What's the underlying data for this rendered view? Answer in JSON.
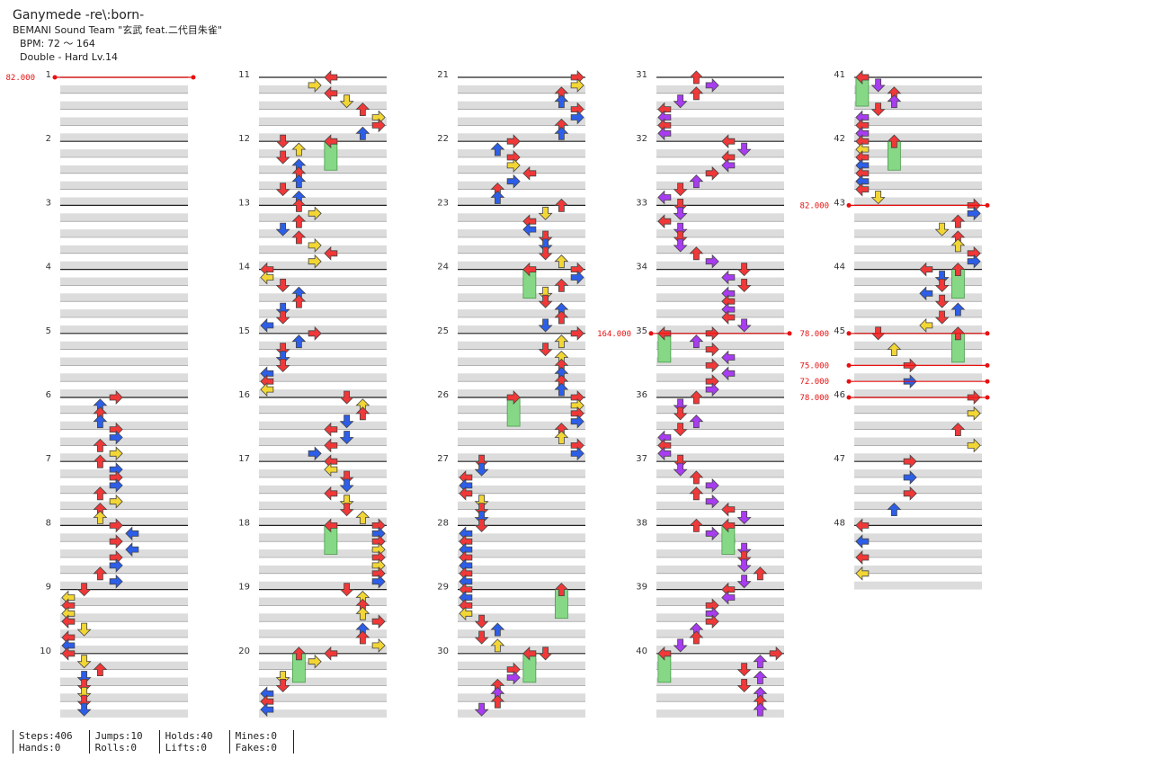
{
  "song": {
    "title": "Ganymede -re\\:born-",
    "artist": "BEMANI Sound Team \"玄武 feat.二代目朱雀\"",
    "bpm": "BPM: 72 ～ 164",
    "difficulty": "Double - Hard  Lv.14"
  },
  "measure_numbers": [
    "1",
    "2",
    "3",
    "4",
    "5",
    "6",
    "7",
    "8",
    "9",
    "10",
    "11",
    "12",
    "13",
    "14",
    "15",
    "16",
    "17",
    "18",
    "19",
    "20",
    "21",
    "22",
    "23",
    "24",
    "25",
    "26",
    "27",
    "28",
    "29",
    "30",
    "31",
    "32",
    "33",
    "34",
    "35",
    "36",
    "37",
    "38",
    "39",
    "40",
    "41",
    "42",
    "43",
    "44",
    "45",
    "46",
    "47",
    "48"
  ],
  "bpm_changes": [
    {
      "measure": 1,
      "beat": 0,
      "label": "82.000"
    },
    {
      "measure": 35,
      "beat": 0,
      "label": "164.000"
    },
    {
      "measure": 43,
      "beat": 0,
      "label": "82.000"
    },
    {
      "measure": 45,
      "beat": 0,
      "label": "78.000"
    },
    {
      "measure": 45,
      "beat": 2,
      "label": "75.000"
    },
    {
      "measure": 45,
      "beat": 3,
      "label": "72.000"
    },
    {
      "measure": 46,
      "beat": 0,
      "label": "78.000"
    }
  ],
  "colors": {
    "q4": "#f03838",
    "q8": "#2c5ee8",
    "q16": "#f2d635",
    "q12": "#a83cf0",
    "q24": "#e23ce0",
    "hold": "#86d886",
    "bpm": "#e81010",
    "band": "#dcdcdc",
    "line": "#222222"
  },
  "stats": [
    {
      "a": "Steps:406",
      "b": "Hands:0"
    },
    {
      "a": "Jumps:10",
      "b": "Rolls:0"
    },
    {
      "a": "Holds:40",
      "b": "Lifts:0"
    },
    {
      "a": "Mines:0",
      "b": "Fakes:0"
    }
  ]
}
